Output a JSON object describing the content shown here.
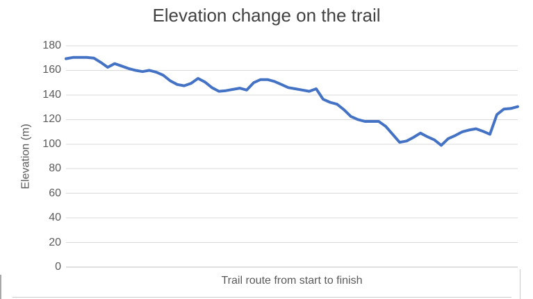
{
  "chart": {
    "title": "Elevation change on the trail",
    "y_axis_title": "Elevation (m)",
    "x_axis_title": "Trail route from start to finish"
  },
  "chart_data": {
    "type": "line",
    "title": "Elevation change on the trail",
    "xlabel": "Trail route from start to finish",
    "ylabel": "Elevation (m)",
    "ylim": [
      0,
      180
    ],
    "y_ticks": [
      0,
      20,
      40,
      60,
      80,
      100,
      120,
      140,
      160,
      180
    ],
    "x_axis_labels": "none",
    "grid": "horizontal",
    "legend": "none",
    "series": [
      {
        "name": "Elevation",
        "values": [
          169.5,
          170.5,
          170.5,
          170.5,
          170,
          166.5,
          162.5,
          165.5,
          163.5,
          161.5,
          160,
          159,
          160,
          158.5,
          156,
          151.5,
          148.5,
          147.5,
          149.5,
          153.5,
          150.5,
          146,
          143,
          143.5,
          144.5,
          145.5,
          144,
          150,
          152.5,
          152.5,
          151,
          148.5,
          146,
          145,
          144,
          143,
          145,
          136.5,
          134,
          132.5,
          128,
          122.5,
          120,
          118.5,
          118.5,
          118.5,
          114.5,
          108,
          101.5,
          102.5,
          105.5,
          109,
          106,
          103.5,
          99,
          104.5,
          107,
          110,
          111.5,
          112.5,
          110.5,
          108,
          124,
          128.5,
          129,
          130.5
        ]
      }
    ]
  },
  "colors": {
    "line": "#4472C4",
    "gridline": "#D9D9D9",
    "axis_line": "#BFBFBF",
    "title_text": "#414141",
    "axis_text": "#595959"
  }
}
